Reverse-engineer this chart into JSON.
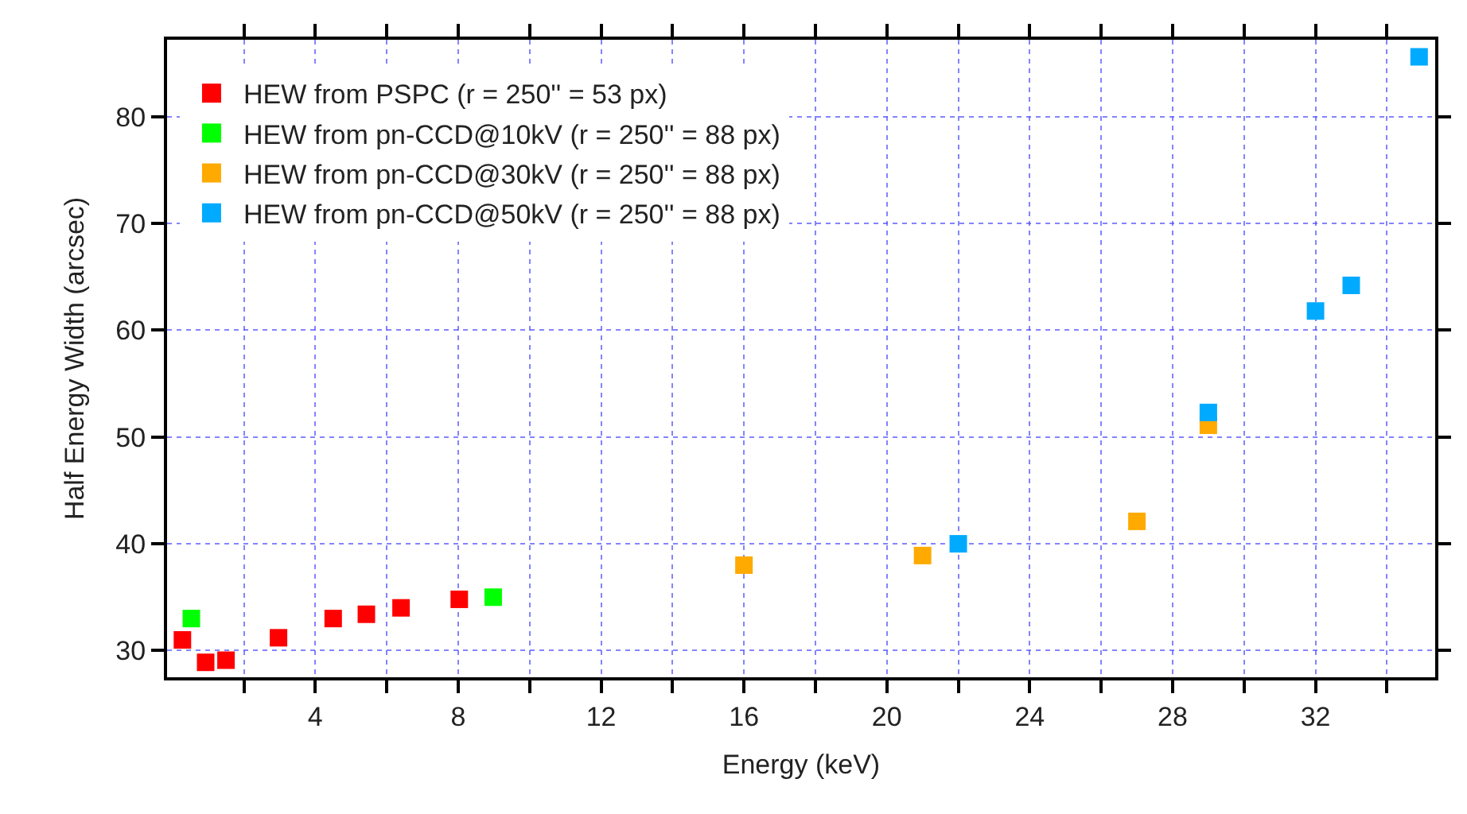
{
  "chart_data": {
    "type": "scatter",
    "xlabel": "Energy (keV)",
    "ylabel": "Half Energy Width (arcsec)",
    "xlim": [
      -0.15,
      35.35
    ],
    "ylim": [
      27.5,
      87.2
    ],
    "xticks": [
      {
        "value": 2,
        "label": null
      },
      4,
      {
        "value": 6,
        "label": null
      },
      8,
      {
        "value": 10,
        "label": null
      },
      12,
      {
        "value": 14,
        "label": null
      },
      16,
      {
        "value": 18,
        "label": null
      },
      20,
      {
        "value": 22,
        "label": null
      },
      24,
      {
        "value": 26,
        "label": null
      },
      28,
      {
        "value": 30,
        "label": null
      },
      32,
      {
        "value": 34,
        "label": null
      }
    ],
    "yticks": [
      30,
      40,
      50,
      60,
      70,
      80
    ],
    "grid": true,
    "legend": "top left",
    "marker": "square",
    "series": [
      {
        "name": "HEW from PSPC (r = 250'' = 53 px)",
        "color": "#ff0000",
        "x": [
          0.28,
          0.93,
          1.5,
          2.97,
          4.5,
          5.43,
          6.4,
          8.03
        ],
        "values": [
          31.0,
          28.9,
          29.1,
          31.2,
          33.0,
          33.4,
          34.0,
          34.8
        ]
      },
      {
        "name": "HEW from pn-CCD@10kV (r = 250'' = 88 px)",
        "color": "#00ff00",
        "x": [
          0.53,
          8.98
        ],
        "values": [
          33.0,
          35.0
        ]
      },
      {
        "name": "HEW from pn-CCD@30kV (r = 250'' = 88 px)",
        "color": "#ffaa00",
        "x": [
          16.0,
          21.0,
          27.0,
          29.0
        ],
        "values": [
          38.0,
          38.9,
          42.1,
          51.1
        ]
      },
      {
        "name": "HEW from pn-CCD@50kV (r = 250'' = 88 px)",
        "color": "#00aaff",
        "x": [
          22.0,
          29.0,
          32.0,
          33.0,
          34.9
        ],
        "values": [
          40.0,
          52.3,
          61.8,
          64.2,
          85.6
        ]
      }
    ]
  }
}
